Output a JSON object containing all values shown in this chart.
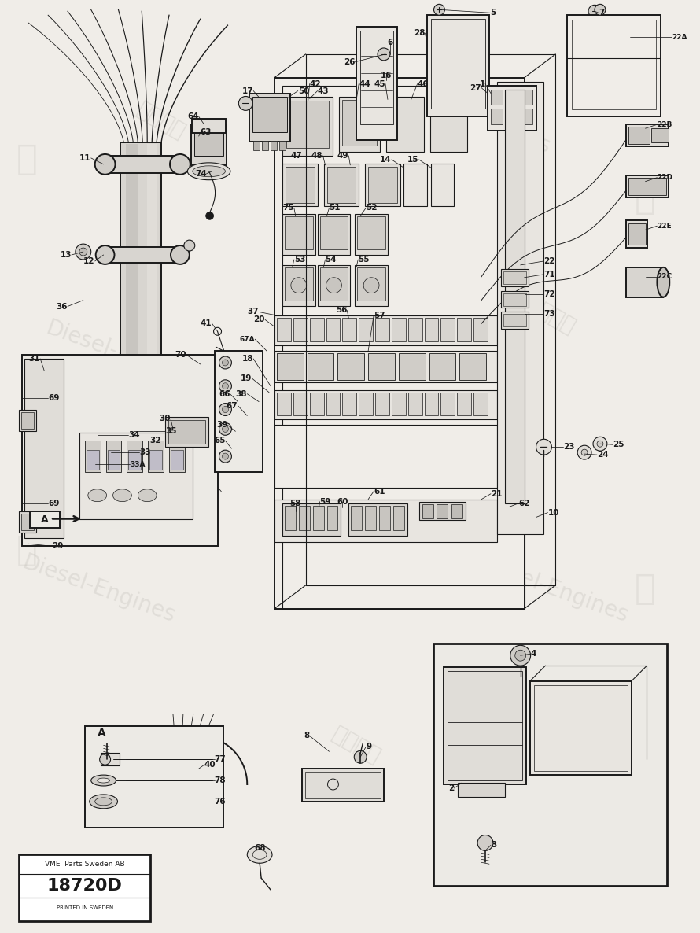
{
  "bg_color": "#f0ede8",
  "line_color": "#1a1a1a",
  "drawing_number": "18720D",
  "company": "VME Parts Sweden AB",
  "printed": "PRINTED IN SWEDEN",
  "figsize": [
    8.9,
    11.86
  ],
  "dpi": 100
}
